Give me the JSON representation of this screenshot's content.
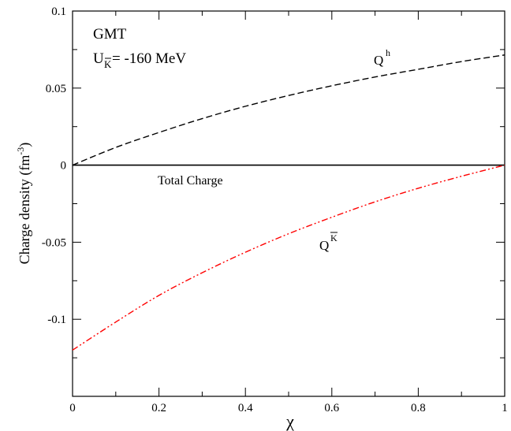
{
  "chart_data": {
    "type": "line",
    "xlabel": "χ",
    "ylabel": "Charge density (fm",
    "ylabel_sup": "-3",
    "ylabel_close": ")",
    "xlim": [
      0,
      1
    ],
    "ylim": [
      -0.15,
      0.1
    ],
    "xticks": [
      0,
      0.2,
      0.4,
      0.6,
      0.8,
      1
    ],
    "xtick_labels": [
      "0",
      "0.2",
      "0.4",
      "0.6",
      "0.8",
      "1"
    ],
    "yticks": [
      -0.1,
      -0.05,
      0,
      0.05,
      0.1
    ],
    "ytick_labels": [
      "-0.1",
      "-0.05",
      "0",
      "0.05",
      "0.1"
    ],
    "grid": false,
    "series": [
      {
        "key": "hadron",
        "color": "#000000",
        "dash": "dashed",
        "x": [
          0,
          0.1,
          0.2,
          0.3,
          0.4,
          0.5,
          0.6,
          0.7,
          0.8,
          0.9,
          1.0
        ],
        "y": [
          0,
          0.0115,
          0.0212,
          0.0302,
          0.0382,
          0.0452,
          0.0515,
          0.0572,
          0.0622,
          0.0672,
          0.0715
        ]
      },
      {
        "key": "total",
        "color": "#000000",
        "dash": "solid",
        "x": [
          0,
          1
        ],
        "y": [
          0,
          0
        ]
      },
      {
        "key": "kaon",
        "color": "#ff0000",
        "dash": "dashdotdot",
        "x": [
          0,
          0.1,
          0.2,
          0.3,
          0.4,
          0.5,
          0.6,
          0.7,
          0.8,
          0.9,
          1.0
        ],
        "y": [
          -0.12,
          -0.1018,
          -0.0845,
          -0.0698,
          -0.0565,
          -0.0445,
          -0.0338,
          -0.0238,
          -0.015,
          -0.0072,
          0
        ]
      }
    ],
    "annotations": {
      "model": "GMT",
      "potential_main": "U",
      "potential_sub": "K",
      "potential_value": " = -160 MeV",
      "hadron_main": "Q",
      "hadron_sup": "h",
      "total_label": "Total Charge",
      "kaon_main": "Q",
      "kaon_sup": "K"
    }
  }
}
